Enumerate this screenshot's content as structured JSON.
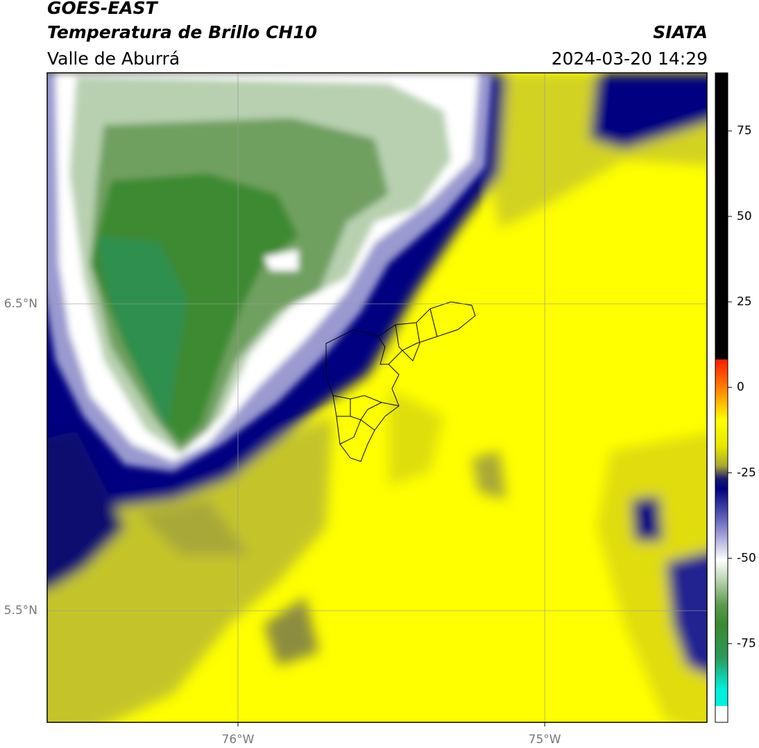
{
  "header": {
    "title": "GOES-EAST",
    "subtitle": "Temperatura de Brillo CH10",
    "region": "Valle de Aburrá",
    "source": "SIATA",
    "datetime": "2024-03-20 14:29"
  },
  "map": {
    "lon_range": [
      -76.622,
      -74.471
    ],
    "lat_range": [
      5.136,
      7.253
    ],
    "lat_ticks": [
      {
        "value": 6.5,
        "label": "6.5°N"
      },
      {
        "value": 5.5,
        "label": "5.5°N"
      }
    ],
    "lon_ticks": [
      {
        "value": -76,
        "label": "76°W"
      },
      {
        "value": -75,
        "label": "75°W"
      }
    ]
  },
  "colorbar": {
    "range": [
      -98,
      92
    ],
    "ticks": [
      -75,
      -50,
      -25,
      0,
      25,
      50,
      75
    ]
  }
}
